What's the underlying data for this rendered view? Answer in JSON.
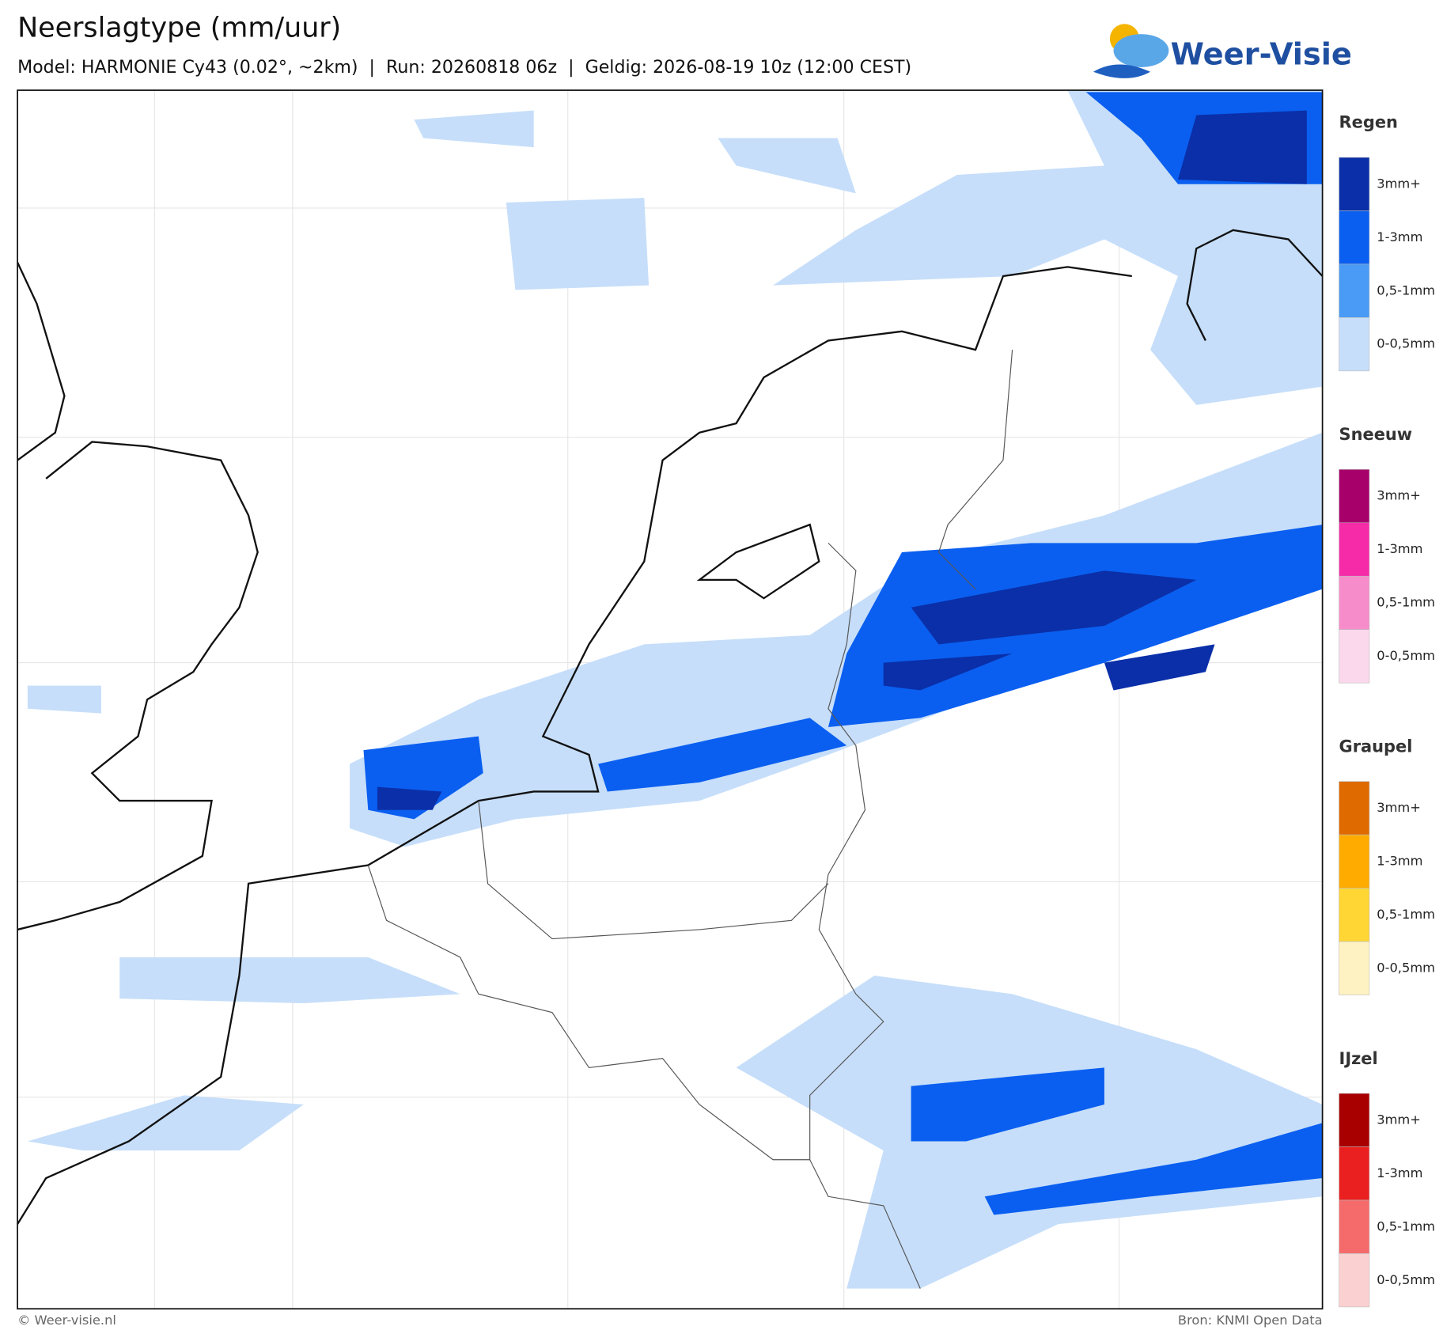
{
  "header": {
    "title": "Neerslagtype (mm/uur)",
    "subtitle": "Model: HARMONIE Cy43 (0.02°, ~2km)  |  Run: 20260818 06z  |  Geldig: 2026-08-19 10z (12:00 CEST)",
    "logo": "Weer-Visie"
  },
  "legend": [
    {
      "title": "Regen",
      "items": [
        {
          "label": "3mm+",
          "color": "#0a2fa8"
        },
        {
          "label": "1-3mm",
          "color": "#0a5ff0"
        },
        {
          "label": "0,5-1mm",
          "color": "#4a9bf5"
        },
        {
          "label": "0-0,5mm",
          "color": "#c6defa"
        }
      ]
    },
    {
      "title": "Sneeuw",
      "items": [
        {
          "label": "3mm+",
          "color": "#a8006b"
        },
        {
          "label": "1-3mm",
          "color": "#f52ba8"
        },
        {
          "label": "0,5-1mm",
          "color": "#f78ccb"
        },
        {
          "label": "0-0,5mm",
          "color": "#fcd8ec"
        }
      ]
    },
    {
      "title": "Graupel",
      "items": [
        {
          "label": "3mm+",
          "color": "#de6a00"
        },
        {
          "label": "1-3mm",
          "color": "#ffab00"
        },
        {
          "label": "0,5-1mm",
          "color": "#ffd633"
        },
        {
          "label": "0-0,5mm",
          "color": "#fff2c2"
        }
      ]
    },
    {
      "title": "IJzel",
      "items": [
        {
          "label": "3mm+",
          "color": "#a80000"
        },
        {
          "label": "1-3mm",
          "color": "#ea1f1f"
        },
        {
          "label": "0,5-1mm",
          "color": "#f56b6b"
        },
        {
          "label": "0-0,5mm",
          "color": "#fbd0d0"
        }
      ]
    }
  ],
  "footer": {
    "left": "© Weer-visie.nl",
    "right": "Bron: KNMI Open Data"
  }
}
